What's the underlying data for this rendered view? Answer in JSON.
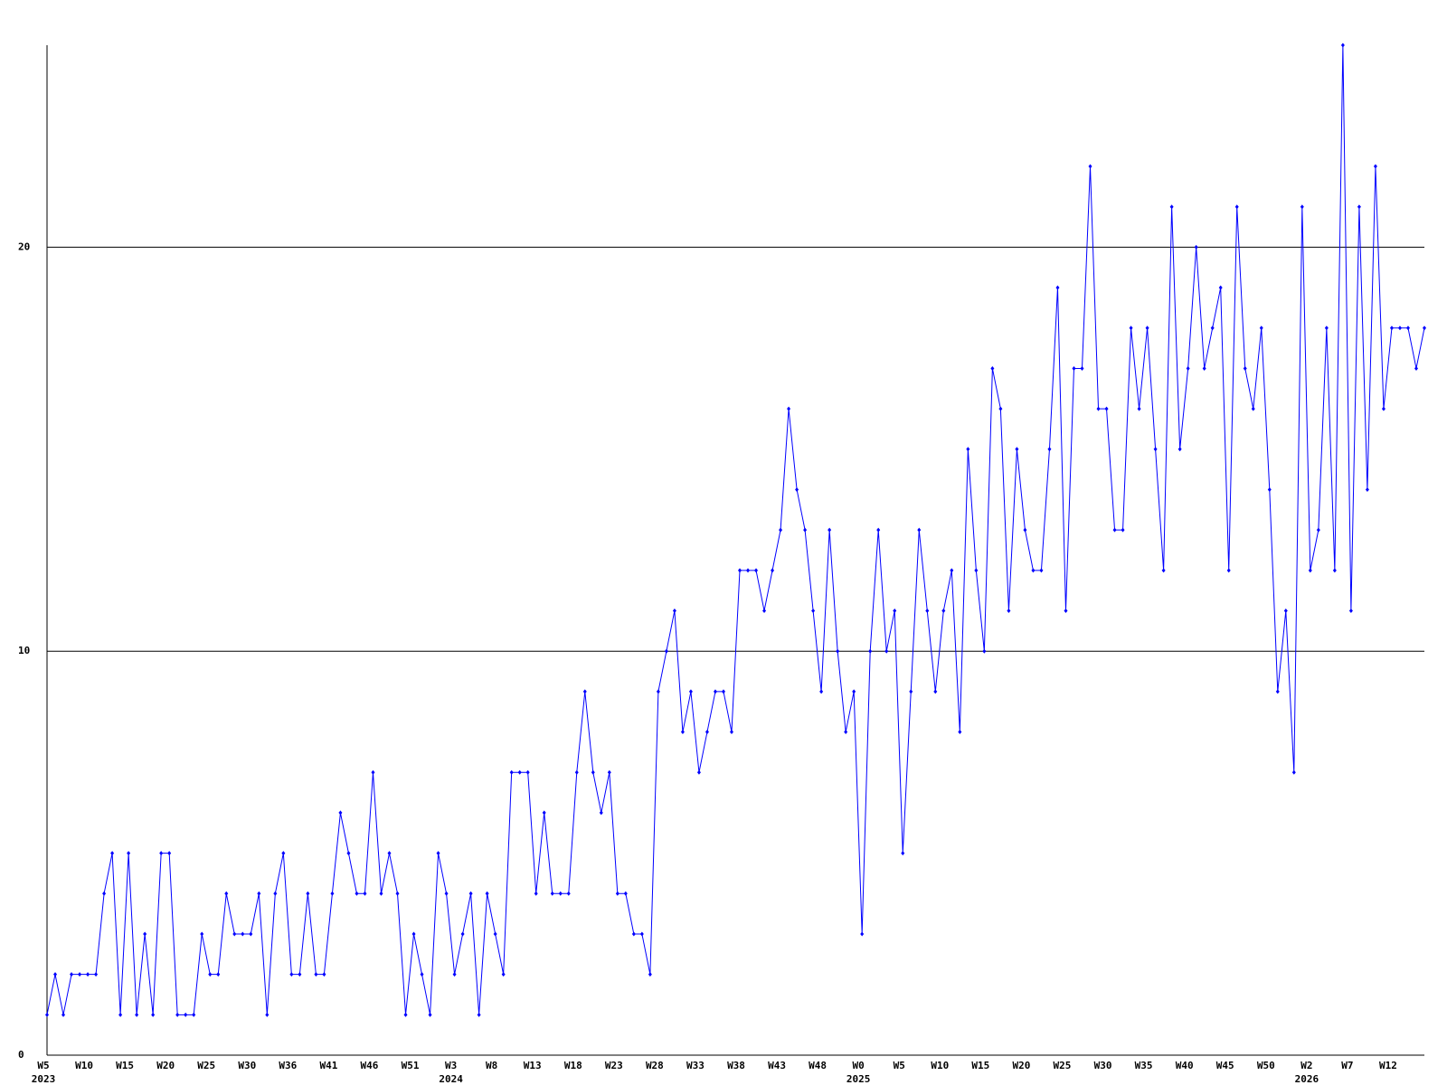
{
  "chart_data": {
    "type": "line",
    "categories": [
      "W5",
      null,
      null,
      null,
      null,
      "W10",
      null,
      null,
      null,
      null,
      "W15",
      null,
      null,
      null,
      null,
      "W20",
      null,
      null,
      null,
      null,
      "W25",
      null,
      null,
      null,
      null,
      "W30",
      null,
      null,
      null,
      null,
      "W36",
      null,
      null,
      null,
      null,
      "W41",
      null,
      null,
      null,
      null,
      "W46",
      null,
      null,
      null,
      null,
      "W51",
      null,
      null,
      null,
      null,
      "W3",
      null,
      null,
      null,
      null,
      "W8",
      null,
      null,
      null,
      null,
      "W13",
      null,
      null,
      null,
      null,
      "W18",
      null,
      null,
      null,
      null,
      "W23",
      null,
      null,
      null,
      null,
      "W28",
      null,
      null,
      null,
      null,
      "W33",
      null,
      null,
      null,
      null,
      "W38",
      null,
      null,
      null,
      null,
      "W43",
      null,
      null,
      null,
      null,
      "W48",
      null,
      null,
      null,
      null,
      "W0",
      null,
      null,
      null,
      null,
      "W5",
      null,
      null,
      null,
      null,
      "W10",
      null,
      null,
      null,
      null,
      "W15",
      null,
      null,
      null,
      null,
      "W20",
      null,
      null,
      null,
      null,
      "W25",
      null,
      null,
      null,
      null,
      "W30",
      null,
      null,
      null,
      null,
      "W35",
      null,
      null,
      null,
      null,
      "W40",
      null,
      null,
      null,
      null,
      "W45",
      null,
      null,
      null,
      null,
      "W50",
      null,
      null,
      null,
      null,
      "W2",
      null,
      null,
      null,
      null,
      "W7",
      null,
      null,
      null,
      null,
      "W12",
      null,
      null,
      null,
      null
    ],
    "x_year_labels": [
      "2023",
      null,
      null,
      null,
      null,
      null,
      null,
      null,
      null,
      null,
      null,
      null,
      null,
      null,
      null,
      null,
      null,
      null,
      null,
      null,
      null,
      null,
      null,
      null,
      null,
      null,
      null,
      null,
      null,
      null,
      null,
      null,
      null,
      null,
      null,
      null,
      null,
      null,
      null,
      null,
      null,
      null,
      null,
      null,
      null,
      null,
      null,
      null,
      null,
      null,
      "2024",
      null,
      null,
      null,
      null,
      null,
      null,
      null,
      null,
      null,
      null,
      null,
      null,
      null,
      null,
      null,
      null,
      null,
      null,
      null,
      null,
      null,
      null,
      null,
      null,
      null,
      null,
      null,
      null,
      null,
      null,
      null,
      null,
      null,
      null,
      null,
      null,
      null,
      null,
      null,
      null,
      null,
      null,
      null,
      null,
      null,
      null,
      null,
      null,
      null,
      "2025",
      null,
      null,
      null,
      null,
      null,
      null,
      null,
      null,
      null,
      null,
      null,
      null,
      null,
      null,
      null,
      null,
      null,
      null,
      null,
      null,
      null,
      null,
      null,
      null,
      null,
      null,
      null,
      null,
      null,
      null,
      null,
      null,
      null,
      null,
      null,
      null,
      null,
      null,
      null,
      null,
      null,
      null,
      null,
      null,
      null,
      null,
      null,
      null,
      null,
      null,
      null,
      null,
      null,
      null,
      "2026",
      null,
      null,
      null,
      null,
      null,
      null,
      null,
      null,
      null,
      null,
      null,
      null,
      null,
      null
    ],
    "series": [
      {
        "color": "#0000ff",
        "values": [
          1,
          2,
          1,
          2,
          2,
          2,
          2,
          4,
          5,
          1,
          5,
          1,
          3,
          1,
          5,
          5,
          1,
          1,
          1,
          3,
          2,
          2,
          4,
          3,
          3,
          3,
          4,
          1,
          4,
          5,
          2,
          2,
          4,
          2,
          2,
          4,
          6,
          5,
          4,
          4,
          7,
          4,
          5,
          4,
          1,
          3,
          2,
          1,
          5,
          4,
          2,
          3,
          4,
          1,
          4,
          3,
          2,
          7,
          7,
          7,
          4,
          6,
          4,
          4,
          4,
          7,
          9,
          7,
          6,
          7,
          4,
          4,
          3,
          3,
          2,
          9,
          10,
          11,
          8,
          9,
          7,
          8,
          9,
          9,
          8,
          12,
          12,
          12,
          11,
          12,
          13,
          16,
          14,
          13,
          11,
          9,
          13,
          10,
          8,
          9,
          3,
          10,
          13,
          10,
          11,
          5,
          9,
          13,
          11,
          9,
          11,
          12,
          8,
          15,
          12,
          10,
          17,
          16,
          11,
          15,
          13,
          12,
          12,
          15,
          19,
          11,
          17,
          17,
          22,
          16,
          16,
          13,
          13,
          18,
          16,
          18,
          15,
          12,
          21,
          15,
          17,
          20,
          17,
          18,
          19,
          12,
          21,
          17,
          16,
          18,
          14,
          9,
          11,
          7,
          21,
          12,
          13,
          18,
          12,
          25,
          11,
          21,
          14,
          22,
          16,
          18,
          18,
          18,
          17,
          18
        ]
      }
    ],
    "ylim": [
      0,
      25
    ],
    "yticks": [
      0,
      10,
      20
    ],
    "grid": true
  }
}
